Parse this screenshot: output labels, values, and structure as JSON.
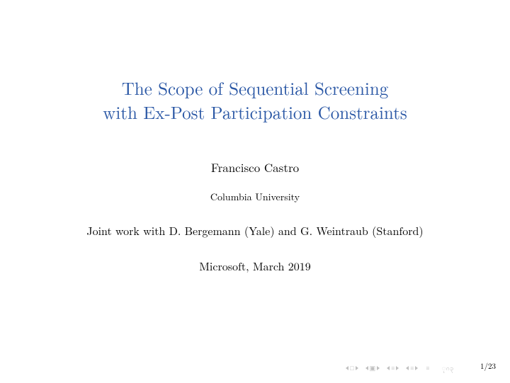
{
  "title_line1": "The Scope of Sequential Screening",
  "title_line2": "with Ex-Post Participation Constraints",
  "author": "Francisco Castro",
  "affiliation": "Columbia University",
  "joint_work": "Joint work with D. Bergemann (Yale) and G. Weintraub (Stanford)",
  "venue": "Microsoft, March 2019",
  "page_current": "1",
  "page_total": "23",
  "colors": {
    "title": "#2a57a5",
    "text": "#000000",
    "nav_faded": "#bfbfbf",
    "background": "#ffffff"
  },
  "fonts": {
    "title_size_pt": 25,
    "author_size_pt": 17,
    "affil_size_pt": 14,
    "body_size_pt": 16,
    "pagenum_size_pt": 11
  }
}
